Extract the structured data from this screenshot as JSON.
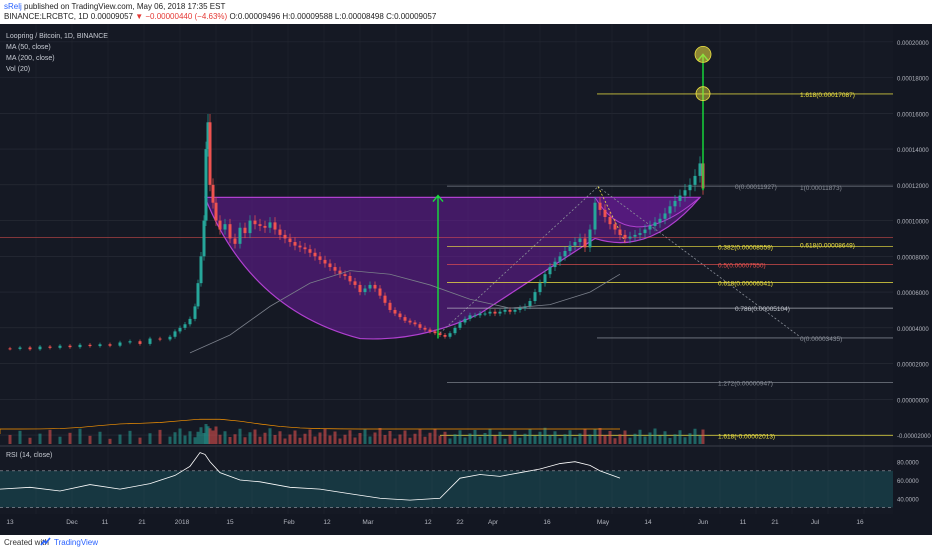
{
  "header": {
    "user": "sRelj",
    "published": "published on TradingView.com, May 06, 2018 17:35 EST",
    "symbol": "BINANCE:LRCBTC, 1D",
    "last": "0.00009057",
    "change": "−0.00000440 (−4.63%)",
    "open": "O:0.00009496",
    "high": "H:0.00009588",
    "low": "L:0.00008498",
    "close": "C:0.00009057"
  },
  "legend": {
    "title": "Loopring / Bitcoin, 1D, BINANCE",
    "items": [
      "MA (50, close)",
      "MA (200, close)",
      "Vol (20)"
    ]
  },
  "rsi_label": "RSI (14, close)",
  "footer": {
    "created": "Created with",
    "brand": "TradingView"
  },
  "colors": {
    "bg": "#151924",
    "up": "#26a69a",
    "down": "#ef5350",
    "fib": "#f0e442",
    "bowl": "#6a1b9a",
    "arrow": "#16e03c",
    "price": "#ef5350"
  },
  "chart_data": {
    "type": "line",
    "price_axis": {
      "ticks": [
        "0.00020000",
        "0.00018000",
        "0.00016000",
        "0.00014000",
        "0.00012000",
        "0.00010000",
        "0.00008000",
        "0.00006000",
        "0.00004000",
        "0.00002000",
        "0.00000000",
        "-0.00002000"
      ],
      "current_price": "0.00009057"
    },
    "rsi_axis": {
      "ticks": [
        "80.0000",
        "60.0000",
        "40.0000"
      ]
    },
    "time_axis": {
      "ticks": [
        "13",
        "Dec",
        "11",
        "21",
        "2018",
        "15",
        "Feb",
        "12",
        "Mar",
        "12",
        "22",
        "Apr",
        "16",
        "May",
        "14",
        "Jun",
        "11",
        "21",
        "Jul",
        "16"
      ]
    },
    "fib_labels": [
      {
        "label": "1.618(0.00017087)",
        "color": "#f0e442"
      },
      {
        "label": "0(0.00011927)",
        "color": "#8a8f99"
      },
      {
        "label": "1(0.00011873)",
        "color": "#8a8f99"
      },
      {
        "label": "0.382(0.00008559)",
        "color": "#f0e442"
      },
      {
        "label": "0.618(0.00008649)",
        "color": "#f0e442"
      },
      {
        "label": "0.5(0.00007550)",
        "color": "#ef5350"
      },
      {
        "label": "0.618(0.00006541)",
        "color": "#f0e442"
      },
      {
        "label": "0.786(0.00005104)",
        "color": "#c0c4cc"
      },
      {
        "label": "0(0.00003435)",
        "color": "#8a8f99"
      },
      {
        "label": "1.272(0.00000947)",
        "color": "#8a8f99"
      },
      {
        "label": "1.618(-0.00002013)",
        "color": "#f0e442"
      }
    ],
    "price_series": [
      [
        0,
        2.85e-05
      ],
      [
        10,
        2.82e-05
      ],
      [
        20,
        2.9e-05
      ],
      [
        30,
        2.8e-05
      ],
      [
        40,
        2.95e-05
      ],
      [
        50,
        2.88e-05
      ],
      [
        60,
        3e-05
      ],
      [
        70,
        2.92e-05
      ],
      [
        80,
        3.05e-05
      ],
      [
        90,
        2.98e-05
      ],
      [
        100,
        3.08e-05
      ],
      [
        110,
        3e-05
      ],
      [
        120,
        3.18e-05
      ],
      [
        130,
        3.25e-05
      ],
      [
        140,
        3.1e-05
      ],
      [
        150,
        3.4e-05
      ],
      [
        160,
        3.35e-05
      ],
      [
        170,
        3.5e-05
      ],
      [
        175,
        3.8e-05
      ],
      [
        180,
        4e-05
      ],
      [
        185,
        4.2e-05
      ],
      [
        190,
        4.5e-05
      ],
      [
        195,
        5.2e-05
      ],
      [
        198,
        6.5e-05
      ],
      [
        201,
        8e-05
      ],
      [
        204,
        0.0001
      ],
      [
        206,
        0.00014
      ],
      [
        208,
        0.000155
      ],
      [
        210,
        0.00012
      ],
      [
        213,
        0.00011
      ],
      [
        216,
        0.0001
      ],
      [
        220,
        9.5e-05
      ],
      [
        225,
        9.8e-05
      ],
      [
        230,
        9e-05
      ],
      [
        235,
        8.7e-05
      ],
      [
        240,
        9.6e-05
      ],
      [
        245,
        9.3e-05
      ],
      [
        250,
        0.0001
      ],
      [
        255,
        9.8e-05
      ],
      [
        260,
        9.7e-05
      ],
      [
        265,
        9.6e-05
      ],
      [
        270,
        9.9e-05
      ],
      [
        275,
        9.5e-05
      ],
      [
        280,
        9.2e-05
      ],
      [
        285,
        9e-05
      ],
      [
        290,
        8.8e-05
      ],
      [
        295,
        8.6e-05
      ],
      [
        300,
        8.5e-05
      ],
      [
        305,
        8.4e-05
      ],
      [
        310,
        8.2e-05
      ],
      [
        315,
        8e-05
      ],
      [
        320,
        7.8e-05
      ],
      [
        325,
        7.6e-05
      ],
      [
        330,
        7.4e-05
      ],
      [
        335,
        7.2e-05
      ],
      [
        340,
        7e-05
      ],
      [
        345,
        6.9e-05
      ],
      [
        350,
        6.6e-05
      ],
      [
        355,
        6.4e-05
      ],
      [
        360,
        6e-05
      ],
      [
        365,
        6.2e-05
      ],
      [
        370,
        6.4e-05
      ],
      [
        375,
        6.2e-05
      ],
      [
        380,
        5.8e-05
      ],
      [
        385,
        5.4e-05
      ],
      [
        390,
        5e-05
      ],
      [
        395,
        4.8e-05
      ],
      [
        400,
        4.6e-05
      ],
      [
        405,
        4.4e-05
      ],
      [
        410,
        4.3e-05
      ],
      [
        415,
        4.2e-05
      ],
      [
        420,
        4e-05
      ],
      [
        425,
        3.9e-05
      ],
      [
        430,
        3.8e-05
      ],
      [
        435,
        3.7e-05
      ],
      [
        440,
        3.6e-05
      ],
      [
        445,
        3.5e-05
      ],
      [
        450,
        3.7e-05
      ],
      [
        455,
        4e-05
      ],
      [
        460,
        4.3e-05
      ],
      [
        465,
        4.5e-05
      ],
      [
        470,
        4.7e-05
      ],
      [
        475,
        4.7e-05
      ],
      [
        480,
        4.8e-05
      ],
      [
        485,
        4.8e-05
      ],
      [
        490,
        4.9e-05
      ],
      [
        495,
        4.8e-05
      ],
      [
        500,
        4.9e-05
      ],
      [
        505,
        5e-05
      ],
      [
        510,
        4.9e-05
      ],
      [
        515,
        5e-05
      ],
      [
        520,
        5.1e-05
      ],
      [
        525,
        5.2e-05
      ],
      [
        530,
        5.5e-05
      ],
      [
        535,
        6e-05
      ],
      [
        540,
        6.5e-05
      ],
      [
        545,
        7e-05
      ],
      [
        550,
        7.4e-05
      ],
      [
        555,
        7.7e-05
      ],
      [
        560,
        8e-05
      ],
      [
        565,
        8.3e-05
      ],
      [
        570,
        8.6e-05
      ],
      [
        575,
        8.8e-05
      ],
      [
        580,
        9e-05
      ],
      [
        585,
        8.5e-05
      ],
      [
        590,
        9.5e-05
      ],
      [
        595,
        0.00011
      ],
      [
        600,
        0.000106
      ],
      [
        605,
        0.000102
      ],
      [
        610,
        9.8e-05
      ],
      [
        615,
        9.5e-05
      ],
      [
        620,
        9.2e-05
      ],
      [
        625,
        9e-05
      ],
      [
        630,
        9.1e-05
      ],
      [
        635,
        9.2e-05
      ],
      [
        640,
        9.3e-05
      ],
      [
        645,
        9.5e-05
      ],
      [
        650,
        9.7e-05
      ],
      [
        655,
        9.9e-05
      ],
      [
        660,
        0.000101
      ],
      [
        665,
        0.000104
      ],
      [
        670,
        0.000108
      ],
      [
        675,
        0.000111
      ],
      [
        680,
        0.000114
      ],
      [
        685,
        0.000117
      ],
      [
        690,
        0.00012
      ],
      [
        695,
        0.000125
      ],
      [
        700,
        0.000132
      ],
      [
        703,
        0.000118
      ]
    ],
    "ma50": [
      [
        190,
        2.6e-05
      ],
      [
        230,
        3.6e-05
      ],
      [
        270,
        5.2e-05
      ],
      [
        310,
        6.5e-05
      ],
      [
        350,
        7.2e-05
      ],
      [
        390,
        7e-05
      ],
      [
        430,
        6.4e-05
      ],
      [
        470,
        5.6e-05
      ],
      [
        510,
        5.1e-05
      ],
      [
        550,
        5.3e-05
      ],
      [
        590,
        6e-05
      ],
      [
        620,
        7e-05
      ]
    ],
    "rsi_series": [
      [
        0,
        50
      ],
      [
        30,
        52
      ],
      [
        60,
        48
      ],
      [
        90,
        55
      ],
      [
        120,
        50
      ],
      [
        150,
        56
      ],
      [
        175,
        65
      ],
      [
        190,
        75
      ],
      [
        200,
        90
      ],
      [
        205,
        88
      ],
      [
        210,
        80
      ],
      [
        220,
        68
      ],
      [
        240,
        60
      ],
      [
        260,
        58
      ],
      [
        290,
        52
      ],
      [
        320,
        50
      ],
      [
        350,
        45
      ],
      [
        380,
        40
      ],
      [
        410,
        38
      ],
      [
        440,
        40
      ],
      [
        460,
        62
      ],
      [
        480,
        66
      ],
      [
        500,
        64
      ],
      [
        520,
        68
      ],
      [
        540,
        72
      ],
      [
        560,
        78
      ],
      [
        575,
        80
      ],
      [
        590,
        76
      ],
      [
        600,
        70
      ],
      [
        610,
        66
      ],
      [
        620,
        62
      ]
    ]
  }
}
